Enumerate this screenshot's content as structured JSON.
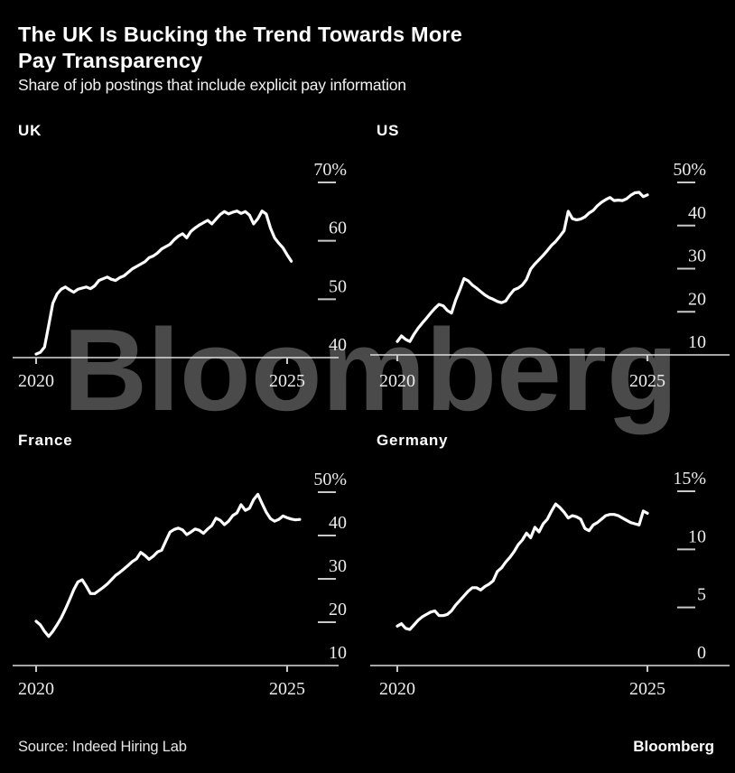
{
  "header": {
    "title_lines": [
      "The UK Is Bucking the Trend Towards More",
      "Pay Transparency"
    ],
    "subtitle": "Share of job postings that include explicit pay information"
  },
  "watermark": {
    "text": "Bloomberg"
  },
  "footer": {
    "source": "Source: Indeed Hiring Lab",
    "logo": "Bloomberg"
  },
  "style": {
    "background": "#000000",
    "series_line": "#ffffff",
    "watermark_gray": "#4a4a4a",
    "axis_line": "#dcdcdc",
    "tick_mark": "#c9c9c9",
    "axis_label": "#ececec",
    "heading_text": "#ffffff"
  },
  "chart_data": [
    {
      "type": "line",
      "title": "UK",
      "x_start_year": 2020,
      "x_interval": "monthly",
      "x_tick_labels": [
        "2020",
        "2025"
      ],
      "x_tick_years": [
        2020,
        2025
      ],
      "ylim": [
        40,
        73
      ],
      "grid": false,
      "legend": "none",
      "y_ticks": [
        {
          "label": "70%",
          "value": 70
        },
        {
          "label": "60",
          "value": 60
        },
        {
          "label": "50",
          "value": 50
        },
        {
          "label": "40",
          "value": 40
        }
      ],
      "baseline_value": 40,
      "values": [
        40.6,
        40.9,
        41.8,
        45.5,
        49.3,
        50.9,
        51.7,
        52.1,
        51.6,
        51.2,
        51.7,
        51.9,
        52.1,
        51.8,
        52.3,
        53.2,
        53.5,
        53.8,
        53.4,
        53.2,
        53.7,
        54.0,
        54.6,
        55.2,
        55.6,
        56.0,
        56.4,
        57.1,
        57.4,
        57.9,
        58.6,
        59.0,
        59.4,
        60.2,
        60.8,
        61.2,
        60.5,
        61.6,
        62.2,
        62.7,
        63.1,
        63.5,
        62.9,
        63.7,
        64.5,
        65.0,
        64.6,
        64.9,
        65.1,
        64.7,
        65.0,
        64.4,
        62.9,
        63.8,
        65.1,
        64.6,
        62.2,
        60.5,
        59.6,
        58.8,
        57.6,
        56.5
      ]
    },
    {
      "type": "line",
      "title": "US",
      "x_start_year": 2020,
      "x_interval": "monthly",
      "x_tick_labels": [
        "2020",
        "2025"
      ],
      "x_tick_years": [
        2020,
        2025
      ],
      "ylim": [
        10,
        52
      ],
      "grid": false,
      "legend": "none",
      "y_ticks": [
        {
          "label": "50%",
          "value": 50
        },
        {
          "label": "40",
          "value": 40
        },
        {
          "label": "30",
          "value": 30
        },
        {
          "label": "20",
          "value": 20
        },
        {
          "label": "10",
          "value": 10
        }
      ],
      "baseline_value": 10,
      "values": [
        13.1,
        14.4,
        13.6,
        13.1,
        14.8,
        16.2,
        17.4,
        18.5,
        19.7,
        20.8,
        21.7,
        21.4,
        20.3,
        19.7,
        22.7,
        25.1,
        27.7,
        27.2,
        26.2,
        25.5,
        24.7,
        23.9,
        23.3,
        22.9,
        22.4,
        22.1,
        22.5,
        23.9,
        25.1,
        25.5,
        26.2,
        27.5,
        29.9,
        31.1,
        32.1,
        33.1,
        34.2,
        35.4,
        36.3,
        37.5,
        38.8,
        43.3,
        41.6,
        41.3,
        41.5,
        42.0,
        42.9,
        43.5,
        44.6,
        45.4,
        46.0,
        46.5,
        45.8,
        45.9,
        45.8,
        46.2,
        47.0,
        47.6,
        47.7,
        46.7,
        47.1
      ]
    },
    {
      "type": "line",
      "title": "France",
      "x_start_year": 2020,
      "x_interval": "monthly",
      "x_tick_labels": [
        "2020",
        "2025"
      ],
      "x_tick_years": [
        2020,
        2025
      ],
      "ylim": [
        10,
        52
      ],
      "grid": false,
      "legend": "none",
      "y_ticks": [
        {
          "label": "50%",
          "value": 50
        },
        {
          "label": "40",
          "value": 40
        },
        {
          "label": "30",
          "value": 30
        },
        {
          "label": "20",
          "value": 20
        },
        {
          "label": "10",
          "value": 10
        }
      ],
      "baseline_value": 10,
      "values": [
        20.2,
        19.4,
        17.9,
        16.7,
        17.9,
        19.4,
        21.0,
        23.0,
        25.2,
        27.5,
        29.3,
        29.8,
        28.3,
        26.6,
        26.6,
        27.3,
        28.0,
        28.8,
        29.8,
        30.8,
        31.5,
        32.3,
        33.1,
        34.0,
        34.6,
        36.1,
        35.4,
        34.5,
        35.2,
        36.2,
        36.6,
        38.7,
        40.8,
        41.4,
        41.7,
        41.3,
        40.2,
        40.8,
        41.5,
        41.2,
        40.5,
        41.5,
        42.3,
        44.0,
        43.5,
        42.5,
        43.3,
        44.6,
        45.2,
        47.1,
        45.8,
        46.3,
        48.3,
        49.5,
        47.4,
        45.4,
        43.9,
        43.3,
        43.7,
        44.5,
        44.1,
        43.8,
        43.6,
        43.7
      ]
    },
    {
      "type": "line",
      "title": "Germany",
      "x_start_year": 2020,
      "x_interval": "monthly",
      "x_tick_labels": [
        "2020",
        "2025"
      ],
      "x_tick_years": [
        2020,
        2025
      ],
      "ylim": [
        0,
        15.8
      ],
      "grid": false,
      "legend": "none",
      "y_ticks": [
        {
          "label": "15%",
          "value": 15
        },
        {
          "label": "10",
          "value": 10
        },
        {
          "label": "5",
          "value": 5
        },
        {
          "label": "0",
          "value": 0
        }
      ],
      "baseline_value": 0,
      "values": [
        3.4,
        3.6,
        3.2,
        3.1,
        3.5,
        3.9,
        4.2,
        4.4,
        4.6,
        4.7,
        4.3,
        4.3,
        4.4,
        4.7,
        5.2,
        5.6,
        6.0,
        6.4,
        6.7,
        6.7,
        6.5,
        6.8,
        7.0,
        7.3,
        8.1,
        8.4,
        8.9,
        9.3,
        9.8,
        10.4,
        10.8,
        11.4,
        11.0,
        11.9,
        11.5,
        12.2,
        12.6,
        13.3,
        13.9,
        13.6,
        13.2,
        12.7,
        12.9,
        12.8,
        12.6,
        11.8,
        11.6,
        12.1,
        12.3,
        12.6,
        12.9,
        13.0,
        13.0,
        12.9,
        12.7,
        12.5,
        12.3,
        12.2,
        12.1,
        13.3,
        13.1
      ]
    }
  ]
}
